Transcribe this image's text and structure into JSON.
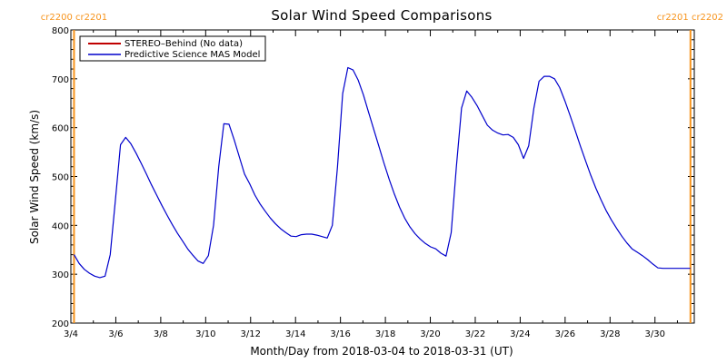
{
  "chart_data": {
    "type": "line",
    "title": "Solar Wind Speed Comparisons",
    "xlabel": "Month/Day from 2018-03-04 to 2018-03-31 (UT)",
    "ylabel": "Solar Wind Speed (km/s)",
    "ylim": [
      200,
      800
    ],
    "xlim": [
      4.0,
      31.75
    ],
    "x_ticks": [
      {
        "value": 4,
        "label": "3/4"
      },
      {
        "value": 6,
        "label": "3/6"
      },
      {
        "value": 8,
        "label": "3/8"
      },
      {
        "value": 10,
        "label": "3/10"
      },
      {
        "value": 12,
        "label": "3/12"
      },
      {
        "value": 14,
        "label": "3/14"
      },
      {
        "value": 16,
        "label": "3/16"
      },
      {
        "value": 18,
        "label": "3/18"
      },
      {
        "value": 20,
        "label": "3/20"
      },
      {
        "value": 22,
        "label": "3/22"
      },
      {
        "value": 24,
        "label": "3/24"
      },
      {
        "value": 26,
        "label": "3/26"
      },
      {
        "value": 28,
        "label": "3/28"
      },
      {
        "value": 30,
        "label": "3/30"
      }
    ],
    "y_ticks": [
      200,
      300,
      400,
      500,
      600,
      700,
      800
    ],
    "legend_position": "top-left",
    "legend": [
      {
        "label": "STEREO–Behind (No data)",
        "color": "#c00000"
      },
      {
        "label": "Predictive Science MAS Model",
        "color": "#0000cc"
      }
    ],
    "carrington_markers": [
      {
        "x": 4.14,
        "label": "cr2200 cr2201"
      },
      {
        "x": 31.58,
        "label": "cr2201 cr2202"
      }
    ],
    "marker_color": "#f7941d",
    "series": [
      {
        "name": "Predictive Science MAS Model",
        "color": "#0000cc",
        "x": [
          4.14,
          4.37,
          4.6,
          4.83,
          5.06,
          5.29,
          5.52,
          5.75,
          5.98,
          6.21,
          6.44,
          6.67,
          6.9,
          7.13,
          7.36,
          7.59,
          7.82,
          8.05,
          8.28,
          8.51,
          8.74,
          8.97,
          9.2,
          9.43,
          9.66,
          9.89,
          10.12,
          10.35,
          10.58,
          10.81,
          11.04,
          11.27,
          11.5,
          11.73,
          11.96,
          12.19,
          12.42,
          12.65,
          12.88,
          13.11,
          13.34,
          13.57,
          13.8,
          14.03,
          14.26,
          14.49,
          14.72,
          14.95,
          15.18,
          15.41,
          15.64,
          15.87,
          16.1,
          16.33,
          16.56,
          16.79,
          17.02,
          17.25,
          17.48,
          17.71,
          17.94,
          18.17,
          18.4,
          18.63,
          18.86,
          19.09,
          19.32,
          19.55,
          19.78,
          20.01,
          20.24,
          20.47,
          20.7,
          20.93,
          21.16,
          21.39,
          21.62,
          21.85,
          22.08,
          22.31,
          22.54,
          22.77,
          23.0,
          23.23,
          23.46,
          23.69,
          23.92,
          24.15,
          24.38,
          24.61,
          24.84,
          25.07,
          25.3,
          25.53,
          25.76,
          25.99,
          26.22,
          26.45,
          26.68,
          26.91,
          27.14,
          27.37,
          27.6,
          27.83,
          28.06,
          28.29,
          28.52,
          28.75,
          28.98,
          29.21,
          29.44,
          29.67,
          29.9,
          30.13,
          30.36,
          30.59,
          30.82,
          31.05,
          31.28,
          31.58
        ],
        "values": [
          340,
          322,
          310,
          302,
          296,
          293,
          296,
          340,
          450,
          565,
          580,
          567,
          548,
          527,
          505,
          483,
          462,
          441,
          421,
          402,
          384,
          368,
          352,
          339,
          327,
          322,
          338,
          400,
          520,
          608,
          607,
          575,
          540,
          505,
          485,
          462,
          444,
          429,
          415,
          403,
          393,
          385,
          378,
          377,
          381,
          382,
          382,
          380,
          377,
          374,
          400,
          520,
          670,
          723,
          718,
          697,
          667,
          632,
          597,
          562,
          527,
          494,
          464,
          437,
          415,
          397,
          383,
          372,
          363,
          356,
          352,
          343,
          337,
          385,
          520,
          640,
          675,
          662,
          645,
          625,
          605,
          595,
          589,
          585,
          586,
          580,
          565,
          537,
          563,
          640,
          695,
          705,
          705,
          700,
          682,
          655,
          625,
          594,
          562,
          532,
          503,
          476,
          452,
          430,
          411,
          394,
          378,
          364,
          352,
          345,
          338,
          330,
          321,
          313,
          312,
          312,
          312,
          312,
          312,
          312
        ]
      }
    ]
  }
}
